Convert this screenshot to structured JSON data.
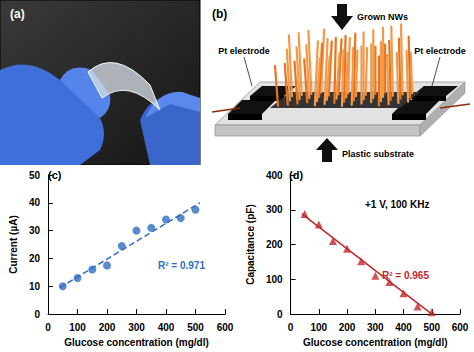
{
  "photo": {
    "label": "(a)"
  },
  "diagram": {
    "label": "(b)",
    "texts": {
      "nanowires": "Grown NWs",
      "electrode_left": "Pt electrode",
      "electrode_right": "Pt electrode",
      "substrate": "Plastic substrate"
    }
  },
  "chart_data": [
    {
      "type": "scatter",
      "annotations": [
        "(c)",
        "R² = 0.971"
      ],
      "x_label": "Glucose concentration (mg/dl)",
      "y_label": "Current (µA)",
      "xlim": [
        0,
        600
      ],
      "xticks": [
        0,
        100,
        200,
        300,
        400,
        500,
        600
      ],
      "ylim": [
        0,
        50
      ],
      "yticks": [
        0,
        10,
        20,
        30,
        40,
        50
      ],
      "grid": false,
      "series": [
        {
          "type": "scatter",
          "marker": "circle",
          "color": "#2e6dc0",
          "x": [
            50,
            100,
            150,
            200,
            250,
            300,
            350,
            400,
            450,
            500
          ],
          "values": [
            10,
            13,
            16,
            17.5,
            24.5,
            30,
            31,
            34,
            34.5,
            37.5
          ]
        },
        {
          "type": "line",
          "line_style": "dashed",
          "color": "#2e6dc0",
          "x": [
            40,
            515
          ],
          "values": [
            9.5,
            40
          ]
        }
      ]
    },
    {
      "type": "scatter",
      "annotations": [
        "(d)",
        "+1 V, 100 KHz",
        "R² = 0.965"
      ],
      "x_label": "Glucose concentration (mg/dl)",
      "y_label": "Capacitance (pF)",
      "xlim": [
        0,
        600
      ],
      "xticks": [
        0,
        100,
        200,
        300,
        400,
        500,
        600
      ],
      "ylim": [
        0,
        400
      ],
      "yticks": [
        0,
        100,
        200,
        300,
        400
      ],
      "grid": false,
      "series": [
        {
          "type": "scatter",
          "marker": "triangle",
          "color": "#c0282d",
          "x": [
            50,
            100,
            150,
            200,
            250,
            300,
            350,
            400,
            450,
            500
          ],
          "values": [
            288,
            258,
            210,
            188,
            152,
            110,
            92,
            60,
            22,
            5
          ]
        },
        {
          "type": "line",
          "line_style": "solid",
          "color": "#c0282d",
          "x": [
            40,
            500
          ],
          "values": [
            288,
            0
          ]
        }
      ]
    }
  ]
}
